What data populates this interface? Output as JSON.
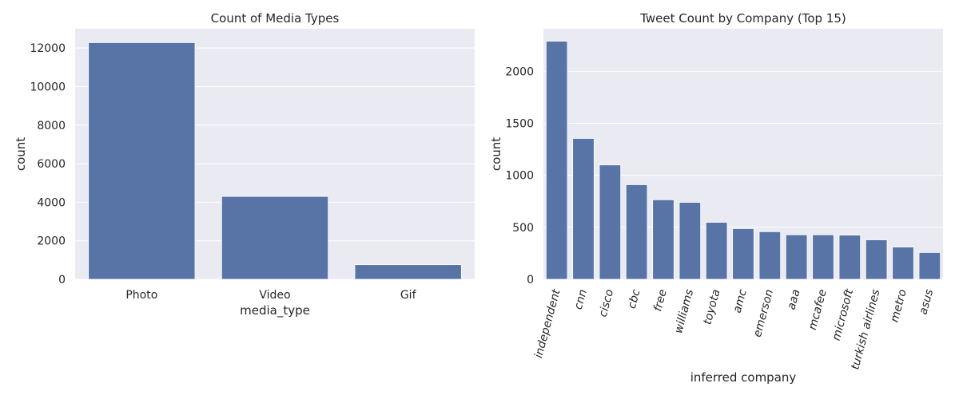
{
  "chart_data": [
    {
      "type": "bar",
      "title": "Count of Media Types",
      "xlabel": "media_type",
      "ylabel": "count",
      "categories": [
        "Photo",
        "Video",
        "Gif"
      ],
      "values": [
        12280,
        4300,
        760
      ],
      "ylim": [
        0,
        13000
      ],
      "yticks": [
        0,
        2000,
        4000,
        6000,
        8000,
        10000,
        12000
      ],
      "grid": true,
      "color": "#5874a6",
      "background": "#eaeaf2"
    },
    {
      "type": "bar",
      "title": "Tweet Count by Company (Top 15)",
      "xlabel": "inferred company",
      "ylabel": "count",
      "categories": [
        "independent",
        "cnn",
        "cisco",
        "cbc",
        "free",
        "williams",
        "toyota",
        "amc",
        "emerson",
        "aaa",
        "mcafee",
        "microsoft",
        "turkish airlines",
        "metro",
        "asus"
      ],
      "values": [
        2290,
        1355,
        1100,
        910,
        765,
        740,
        548,
        488,
        458,
        428,
        428,
        425,
        380,
        310,
        258
      ],
      "ylim": [
        0,
        2410
      ],
      "yticks": [
        0,
        500,
        1000,
        1500,
        2000
      ],
      "grid": true,
      "color": "#5874a6",
      "background": "#eaeaf2"
    }
  ]
}
